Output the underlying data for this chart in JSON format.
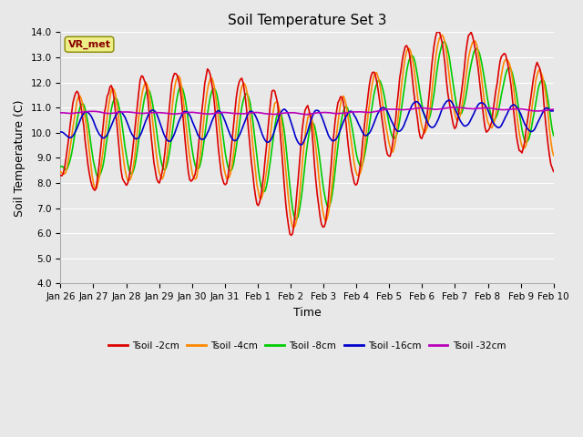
{
  "title": "Soil Temperature Set 3",
  "xlabel": "Time",
  "ylabel": "Soil Temperature (C)",
  "ylim": [
    4.0,
    14.0
  ],
  "yticks": [
    4.0,
    5.0,
    6.0,
    7.0,
    8.0,
    9.0,
    10.0,
    11.0,
    12.0,
    13.0,
    14.0
  ],
  "x_tick_labels": [
    "Jan 26",
    "Jan 27",
    "Jan 28",
    "Jan 29",
    "Jan 30",
    "Jan 31",
    "Feb 1",
    "Feb 2",
    "Feb 3",
    "Feb 4",
    "Feb 5",
    "Feb 6",
    "Feb 7",
    "Feb 8",
    "Feb 9",
    "Feb 10"
  ],
  "series_colors": [
    "#dd0000",
    "#ff8800",
    "#00cc00",
    "#0000cc",
    "#bb00bb"
  ],
  "series_labels": [
    "Tsoil -2cm",
    "Tsoil -4cm",
    "Tsoil -8cm",
    "Tsoil -16cm",
    "Tsoil -32cm"
  ],
  "legend_label": "VR_met",
  "bg_color": "#e8e8e8",
  "plot_bg_color": "#e8e8e8",
  "grid_color": "#ffffff",
  "line_width": 1.2,
  "title_fontsize": 11,
  "axis_fontsize": 9,
  "tick_fontsize": 7.5
}
